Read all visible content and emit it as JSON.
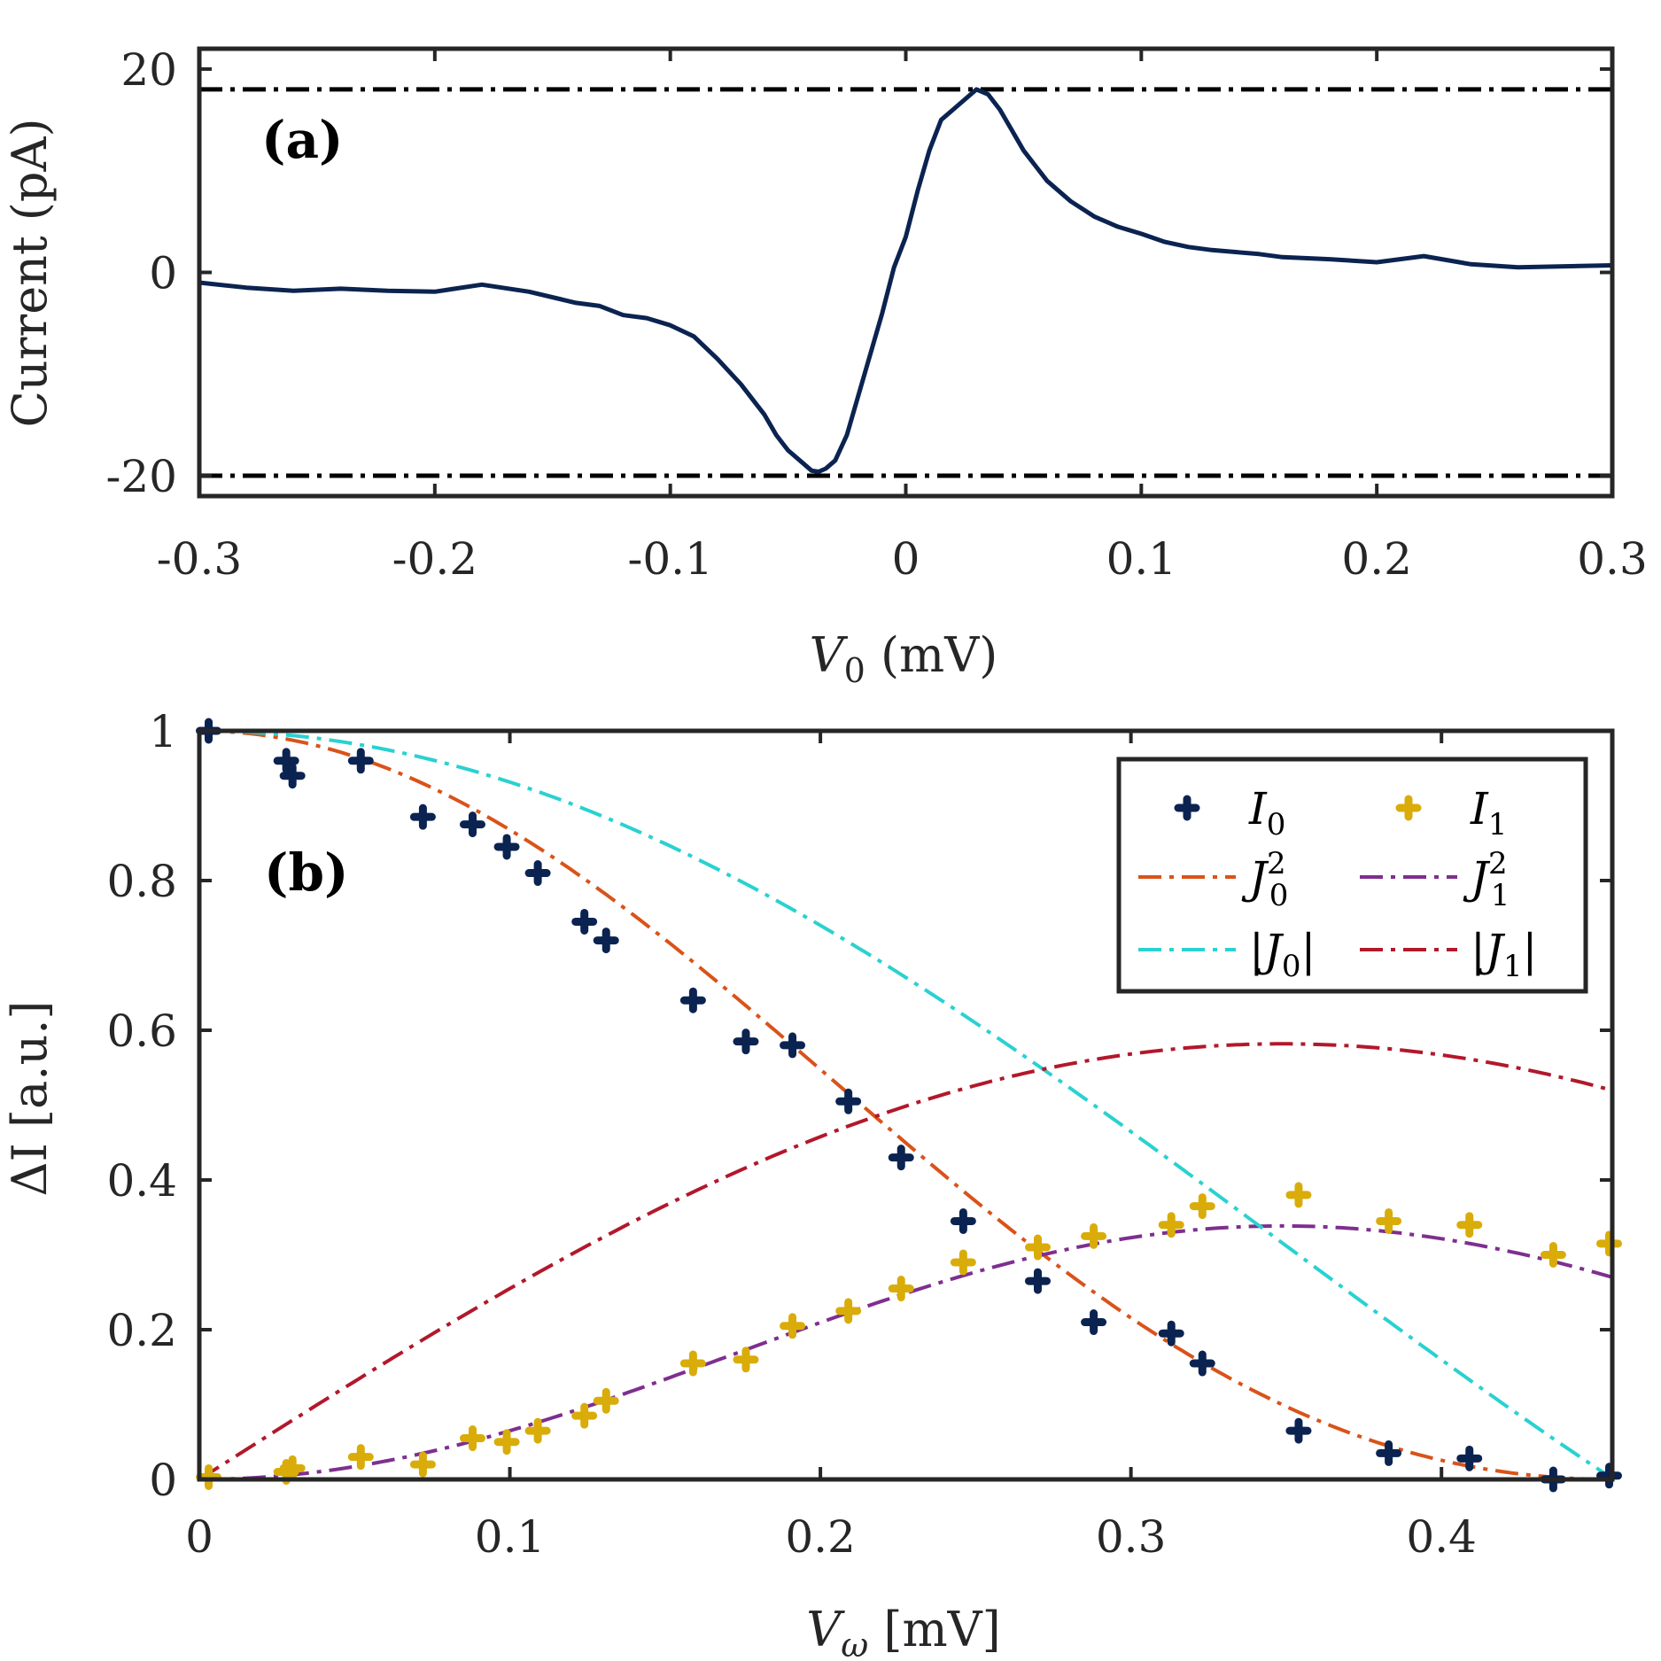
{
  "chart_data": [
    {
      "panel": "(a)",
      "type": "line",
      "title": "",
      "xlabel": {
        "symbol": "V",
        "subscript": "0",
        "unit": " (mV)"
      },
      "ylabel": "Current (pA)",
      "xlim": [
        -0.3,
        0.3
      ],
      "ylim": [
        -22,
        22
      ],
      "xticks": [
        -0.3,
        -0.2,
        -0.1,
        0,
        0.1,
        0.2,
        0.3
      ],
      "xtick_labels": [
        "-0.3",
        "-0.2",
        "-0.1",
        "0",
        "0.1",
        "0.2",
        "0.3"
      ],
      "yticks": [
        -20,
        0,
        20
      ],
      "ytick_labels": [
        "-20",
        "0",
        "20"
      ],
      "grid": false,
      "series": [
        {
          "name": "Current",
          "color": "#0b2350",
          "style": "solid",
          "x": [
            -0.3,
            -0.28,
            -0.26,
            -0.24,
            -0.22,
            -0.2,
            -0.18,
            -0.16,
            -0.14,
            -0.13,
            -0.12,
            -0.11,
            -0.1,
            -0.09,
            -0.08,
            -0.07,
            -0.06,
            -0.055,
            -0.05,
            -0.045,
            -0.04,
            -0.037,
            -0.034,
            -0.03,
            -0.025,
            -0.02,
            -0.015,
            -0.01,
            -0.005,
            0,
            0.005,
            0.01,
            0.015,
            0.02,
            0.025,
            0.03,
            0.035,
            0.04,
            0.045,
            0.05,
            0.055,
            0.06,
            0.07,
            0.08,
            0.09,
            0.1,
            0.11,
            0.12,
            0.13,
            0.14,
            0.15,
            0.16,
            0.18,
            0.2,
            0.22,
            0.24,
            0.26,
            0.28,
            0.3
          ],
          "y": [
            -1,
            -1.5,
            -1.8,
            -1.6,
            -1.8,
            -1.9,
            -1.2,
            -1.9,
            -3,
            -3.3,
            -4.2,
            -4.5,
            -5.2,
            -6.3,
            -8.5,
            -11,
            -14,
            -16,
            -17.5,
            -18.5,
            -19.5,
            -19.6,
            -19.3,
            -18.5,
            -16,
            -12,
            -8,
            -4,
            0.5,
            3.5,
            8,
            12,
            15,
            16,
            17,
            18,
            17.5,
            16,
            14,
            12,
            10.5,
            9,
            7,
            5.5,
            4.5,
            3.8,
            3,
            2.5,
            2.2,
            2,
            1.8,
            1.5,
            1.3,
            1,
            1.6,
            0.8,
            0.5,
            0.6,
            0.7
          ]
        }
      ],
      "reference_lines": [
        {
          "y": 18,
          "style": "dash-dot",
          "color": "#000000"
        },
        {
          "y": -20,
          "style": "dash-dot",
          "color": "#000000"
        }
      ]
    },
    {
      "panel": "(b)",
      "type": "line",
      "title": "",
      "xlabel": {
        "symbol": "V",
        "subscript": "ω",
        "unit": " [mV]"
      },
      "ylabel": "ΔI [a.u.]",
      "xlim": [
        0,
        0.455
      ],
      "ylim": [
        0,
        1
      ],
      "xticks": [
        0,
        0.1,
        0.2,
        0.3,
        0.4
      ],
      "xtick_labels": [
        "0",
        "0.1",
        "0.2",
        "0.3",
        "0.4"
      ],
      "yticks": [
        0,
        0.2,
        0.4,
        0.6,
        0.8,
        1
      ],
      "ytick_labels": [
        "0",
        "0.2",
        "0.4",
        "0.6",
        "0.8",
        "1"
      ],
      "grid": false,
      "legend": {
        "placement": "top-right",
        "columns": 2
      },
      "scatter_series": [
        {
          "name": "I0",
          "label": {
            "sym": "I",
            "sub": "0"
          },
          "color": "#0b2350",
          "marker": "plus",
          "x": [
            0.003,
            0.028,
            0.03,
            0.052,
            0.072,
            0.088,
            0.099,
            0.109,
            0.124,
            0.131,
            0.159,
            0.176,
            0.191,
            0.209,
            0.226,
            0.246,
            0.27,
            0.288,
            0.313,
            0.323,
            0.354,
            0.383,
            0.409,
            0.436,
            0.454
          ],
          "y": [
            1.0,
            0.96,
            0.94,
            0.96,
            0.885,
            0.875,
            0.845,
            0.81,
            0.745,
            0.72,
            0.64,
            0.585,
            0.58,
            0.505,
            0.43,
            0.345,
            0.265,
            0.21,
            0.195,
            0.155,
            0.065,
            0.035,
            0.028,
            0.0,
            0.005
          ]
        },
        {
          "name": "I1",
          "label": {
            "sym": "I",
            "sub": "1"
          },
          "color": "#d9ac0a",
          "marker": "plus",
          "x": [
            0.003,
            0.028,
            0.03,
            0.052,
            0.072,
            0.088,
            0.099,
            0.109,
            0.124,
            0.131,
            0.159,
            0.176,
            0.191,
            0.209,
            0.226,
            0.246,
            0.27,
            0.288,
            0.313,
            0.323,
            0.354,
            0.383,
            0.409,
            0.436,
            0.454
          ],
          "y": [
            0.003,
            0.01,
            0.015,
            0.03,
            0.02,
            0.055,
            0.05,
            0.065,
            0.085,
            0.105,
            0.155,
            0.16,
            0.205,
            0.225,
            0.255,
            0.29,
            0.31,
            0.325,
            0.34,
            0.365,
            0.38,
            0.345,
            0.34,
            0.3,
            0.315
          ]
        }
      ],
      "curves": [
        {
          "name": "J0^2",
          "label": {
            "sym": "J",
            "sub": "0",
            "sup": "2"
          },
          "color": "#d95319",
          "style": "dash-dot",
          "function": "J0^2",
          "arg_scale": 5.28
        },
        {
          "name": "J1^2",
          "label": {
            "sym": "J",
            "sub": "1",
            "sup": "2"
          },
          "color": "#7e2f8e",
          "style": "dash-dot",
          "function": "J1^2",
          "arg_scale": 5.28
        },
        {
          "name": "|J0|",
          "label": {
            "sym": "J",
            "sub": "0",
            "abs": true
          },
          "color": "#2ad1d1",
          "style": "dash-dot",
          "function": "|J0|",
          "arg_scale": 5.28
        },
        {
          "name": "|J1|",
          "label": {
            "sym": "J",
            "sub": "1",
            "abs": true
          },
          "color": "#b2182b",
          "style": "dash-dot",
          "function": "|J1|",
          "arg_scale": 5.28
        }
      ]
    }
  ]
}
